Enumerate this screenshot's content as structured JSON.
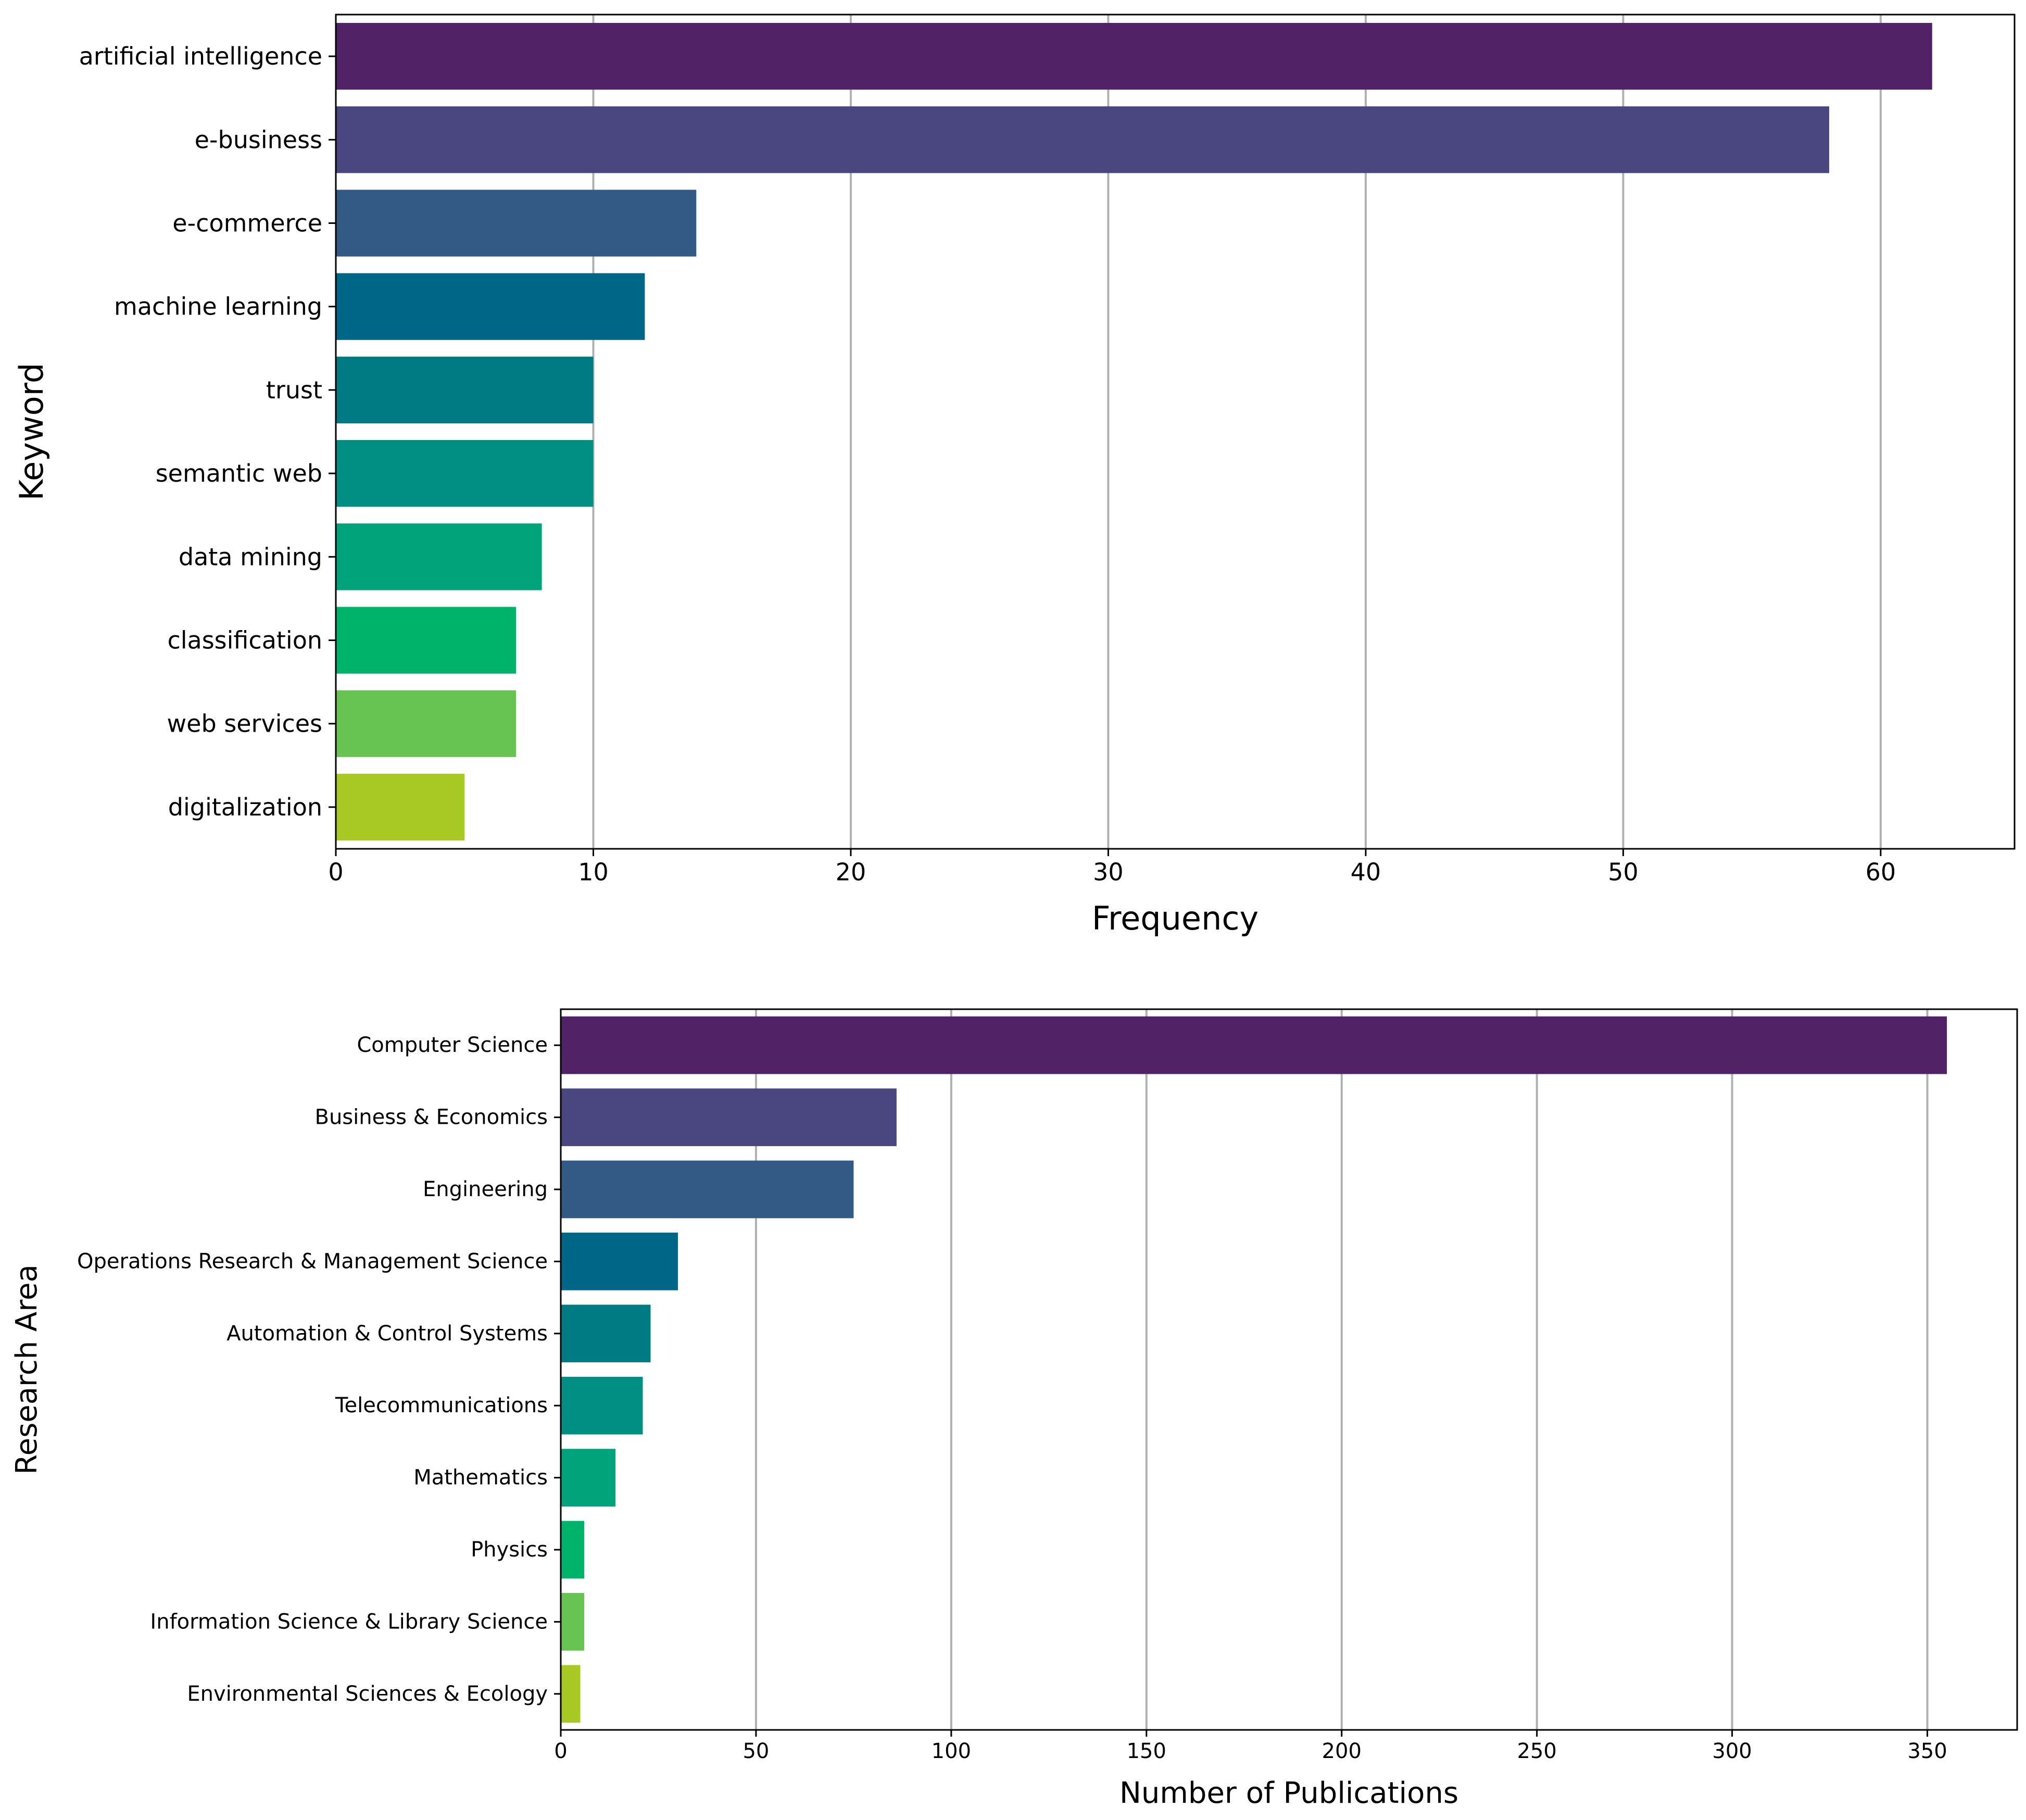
{
  "chart_data": [
    {
      "type": "bar",
      "orientation": "horizontal",
      "categories": [
        "artificial intelligence",
        "e-business",
        "e-commerce",
        "machine learning",
        "trust",
        "semantic web",
        "data mining",
        "classification",
        "web services",
        "digitalization"
      ],
      "values": [
        62,
        58,
        14,
        12,
        10,
        10,
        8,
        7,
        7,
        5
      ],
      "colors": [
        "#512366",
        "#4a4680",
        "#325a85",
        "#006687",
        "#007b84",
        "#008f82",
        "#00a37a",
        "#00b36a",
        "#67c452",
        "#a8c823"
      ],
      "xlabel": "Frequency",
      "ylabel": "Keyword",
      "xlim": [
        0,
        65.2
      ],
      "xticks": [
        0,
        10,
        20,
        30,
        40,
        50,
        60
      ],
      "grid": "x"
    },
    {
      "type": "bar",
      "orientation": "horizontal",
      "categories": [
        "Computer Science",
        "Business & Economics",
        "Engineering",
        "Operations Research & Management Science",
        "Automation & Control Systems",
        "Telecommunications",
        "Mathematics",
        "Physics",
        "Information Science & Library Science",
        "Environmental Sciences & Ecology"
      ],
      "values": [
        355,
        86,
        75,
        30,
        23,
        21,
        14,
        6,
        6,
        5
      ],
      "colors": [
        "#512366",
        "#4a4680",
        "#325a85",
        "#006687",
        "#007b84",
        "#008f82",
        "#00a37a",
        "#00b36a",
        "#67c452",
        "#a8c823"
      ],
      "xlabel": "Number of Publications",
      "ylabel": "Research Area",
      "xlim": [
        0,
        373
      ],
      "xticks": [
        0,
        50,
        100,
        150,
        200,
        250,
        300,
        350
      ],
      "grid": "x"
    }
  ]
}
